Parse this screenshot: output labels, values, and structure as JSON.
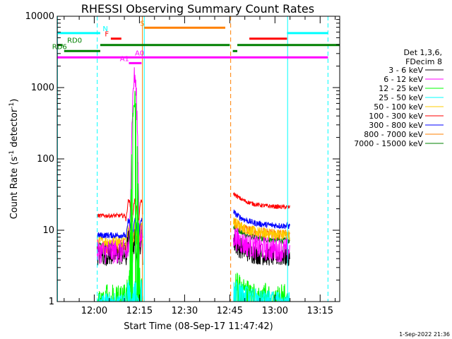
{
  "chart_data": {
    "type": "line",
    "title": "RHESSI Observing Summary Count Rates",
    "xlabel": "Start Time (08-Sep-17 11:47:42)",
    "ylabel_pre": "Count Rate (s",
    "ylabel_sup1": "-1",
    "ylabel_mid": " detector",
    "ylabel_sup2": "-1",
    "ylabel_post": ")",
    "y_scale": "log",
    "xlim_minutes": [
      707.7,
      801.5
    ],
    "ylim": [
      1,
      10000
    ],
    "x_ticks": [
      {
        "label": "12:00",
        "minutes": 720
      },
      {
        "label": "12:15",
        "minutes": 735
      },
      {
        "label": "12:30",
        "minutes": 750
      },
      {
        "label": "12:45",
        "minutes": 765
      },
      {
        "label": "13:00",
        "minutes": 780
      },
      {
        "label": "13:15",
        "minutes": 795
      }
    ],
    "y_ticks": [
      {
        "label": "1",
        "value": 1
      },
      {
        "label": "10",
        "value": 10
      },
      {
        "label": "100",
        "value": 100
      },
      {
        "label": "1000",
        "value": 1000
      },
      {
        "label": "10000",
        "value": 10000
      }
    ],
    "legend_header": [
      "Det 1,3,6,",
      "FDecim 8"
    ],
    "series": [
      {
        "name": "3 - 6 keV",
        "color": "#000000",
        "a": 4.5,
        "b": 4.5,
        "noise": 0.35
      },
      {
        "name": "6 - 12 keV",
        "color": "#ff00ff",
        "a": 5.0,
        "b": 5.5,
        "noise": 0.4,
        "peak": 1400
      },
      {
        "name": "12 - 25 keV",
        "color": "#00ff00",
        "a": 1.3,
        "b": 1.4,
        "noise": 0.3,
        "peak": 700
      },
      {
        "name": "25 - 50 keV",
        "color": "#00ffff",
        "a": 1.15,
        "b": 1.25,
        "noise": 0.15
      },
      {
        "name": "50 - 100 keV",
        "color": "#ffcc00",
        "a": 7.0,
        "b": 9.0,
        "noise": 0.18
      },
      {
        "name": "100 - 300 keV",
        "color": "#ff0000",
        "a": 16.0,
        "b": 22.0,
        "noise": 0.07
      },
      {
        "name": "300 - 800 keV",
        "color": "#0000ff",
        "a": 8.5,
        "b": 12.0,
        "noise": 0.1
      },
      {
        "name": "800 - 7000 keV",
        "color": "#ff8000",
        "a": 5.5,
        "b": 9.0,
        "noise": 0.18
      },
      {
        "name": "7000 - 15000 keV",
        "color": "#008000",
        "a": 6.2,
        "b": 7.5,
        "noise": 0.1
      }
    ],
    "data_segments": [
      {
        "start": 721.0,
        "end": 736.2
      },
      {
        "start": 766.2,
        "end": 785.0
      }
    ],
    "flag_bars": [
      {
        "label": "S",
        "color": "#ff8000",
        "y": 6900,
        "segments": [
          [
            736.6,
            763.5
          ]
        ],
        "label_x": 735.2
      },
      {
        "label": "N",
        "color": "#00ffff",
        "y": 5800,
        "segments": [
          [
            707.7,
            722.0
          ],
          [
            784.0,
            797.6
          ]
        ],
        "label_x": 722.8
      },
      {
        "label": "F",
        "color": "#ff0000",
        "y": 4850,
        "segments": [
          [
            725.5,
            729.0
          ],
          [
            771.5,
            784.0
          ]
        ],
        "label_x": 723.5
      },
      {
        "label": "RD0",
        "color": "#008000",
        "y": 3950,
        "segments": [
          [
            707.7,
            709.5
          ],
          [
            722.0,
            765.0
          ],
          [
            767.5,
            801.5
          ]
        ],
        "label_x": 711.0
      },
      {
        "label": "RD6",
        "color": "#008000",
        "y": 3250,
        "segments": [
          [
            710.0,
            722.0
          ],
          [
            766.0,
            767.5
          ]
        ],
        "label_x": 706.0
      },
      {
        "label": "A0",
        "color": "#ff00ff",
        "y": 2650,
        "segments": [
          [
            707.7,
            797.6
          ]
        ],
        "label_x": 733.5
      },
      {
        "label": "A1",
        "color": "#ff00ff",
        "y": 2200,
        "segments": [
          [
            731.5,
            735.7
          ]
        ],
        "label_x": 728.5
      }
    ],
    "vertical_lines": [
      {
        "minutes": 707.8,
        "color": "#00ffff",
        "style": "solid"
      },
      {
        "minutes": 721.0,
        "color": "#00ffff",
        "style": "dashed"
      },
      {
        "minutes": 736.0,
        "color": "#ff8000",
        "style": "solid"
      },
      {
        "minutes": 736.6,
        "color": "#00ffff",
        "style": "solid"
      },
      {
        "minutes": 765.3,
        "color": "#ff8000",
        "style": "dashed"
      },
      {
        "minutes": 784.2,
        "color": "#00ffff",
        "style": "solid"
      },
      {
        "minutes": 797.6,
        "color": "#00ffff",
        "style": "dashed"
      }
    ],
    "timestamp": "1-Sep-2022 21:36"
  }
}
